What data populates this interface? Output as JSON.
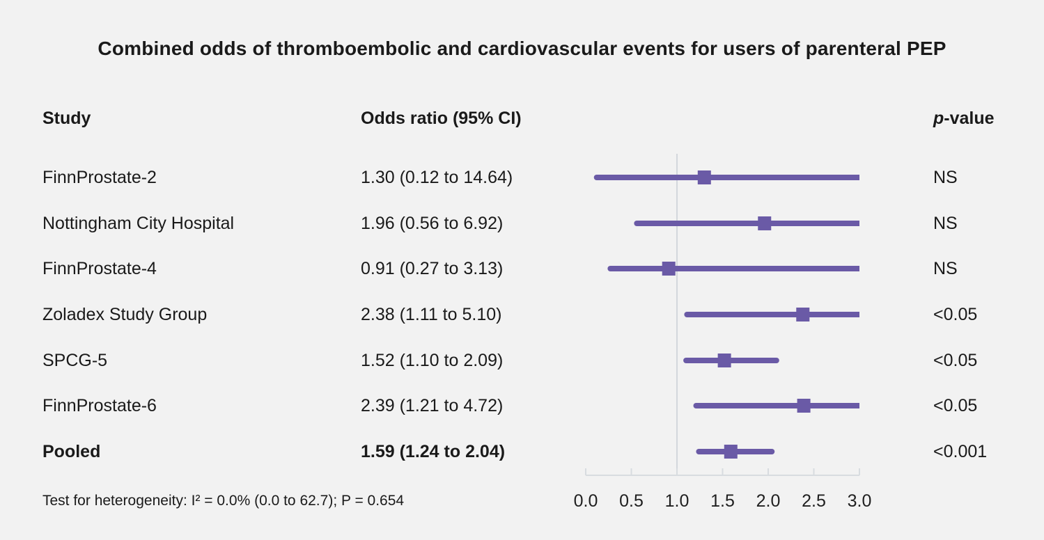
{
  "title": "Combined odds of thromboembolic and cardiovascular events for users of parenteral PEP",
  "columns": {
    "study": "Study",
    "odds_ratio": "Odds ratio (95% CI)",
    "p_italic": "p",
    "p_rest": "-value"
  },
  "footnote": "Test for heterogeneity: I² = 0.0% (0.0 to 62.7); P = 0.654",
  "chart_data": {
    "type": "forest",
    "title": "Combined odds of thromboembolic and cardiovascular events for users of parenteral PEP",
    "xlabel": "",
    "xlim": [
      0.0,
      3.0
    ],
    "x_ticks": [
      "0.0",
      "0.5",
      "1.0",
      "1.5",
      "2.0",
      "2.5",
      "3.0"
    ],
    "reference_line": 1.0,
    "legend": "none",
    "grid": "off",
    "colors": {
      "marker": "#6a5aa6",
      "ci_line": "#6a5aa6",
      "axis": "#d8dce0",
      "reference": "#d3d7dc",
      "background": "#f2f2f2",
      "text": "#1a1a1a"
    },
    "rows": [
      {
        "study": "FinnProstate-2",
        "or_text": "1.30 (0.12 to 14.64)",
        "est": 1.3,
        "lo": 0.12,
        "hi": 14.64,
        "p": "NS",
        "bold": false
      },
      {
        "study": "Nottingham City Hospital",
        "or_text": "1.96 (0.56 to 6.92)",
        "est": 1.96,
        "lo": 0.56,
        "hi": 6.92,
        "p": "NS",
        "bold": false
      },
      {
        "study": "FinnProstate-4",
        "or_text": "0.91 (0.27 to 3.13)",
        "est": 0.91,
        "lo": 0.27,
        "hi": 3.13,
        "p": "NS",
        "bold": false
      },
      {
        "study": "Zoladex Study Group",
        "or_text": "2.38 (1.11 to 5.10)",
        "est": 2.38,
        "lo": 1.11,
        "hi": 5.1,
        "p": "<0.05",
        "bold": false
      },
      {
        "study": "SPCG-5",
        "or_text": "1.52 (1.10 to 2.09)",
        "est": 1.52,
        "lo": 1.1,
        "hi": 2.09,
        "p": "<0.05",
        "bold": false
      },
      {
        "study": "FinnProstate-6",
        "or_text": "2.39 (1.21 to 4.72)",
        "est": 2.39,
        "lo": 1.21,
        "hi": 4.72,
        "p": "<0.05",
        "bold": false
      },
      {
        "study": "Pooled",
        "or_text": "1.59 (1.24 to 2.04)",
        "est": 1.59,
        "lo": 1.24,
        "hi": 2.04,
        "p": "<0.001",
        "bold": true
      }
    ]
  }
}
